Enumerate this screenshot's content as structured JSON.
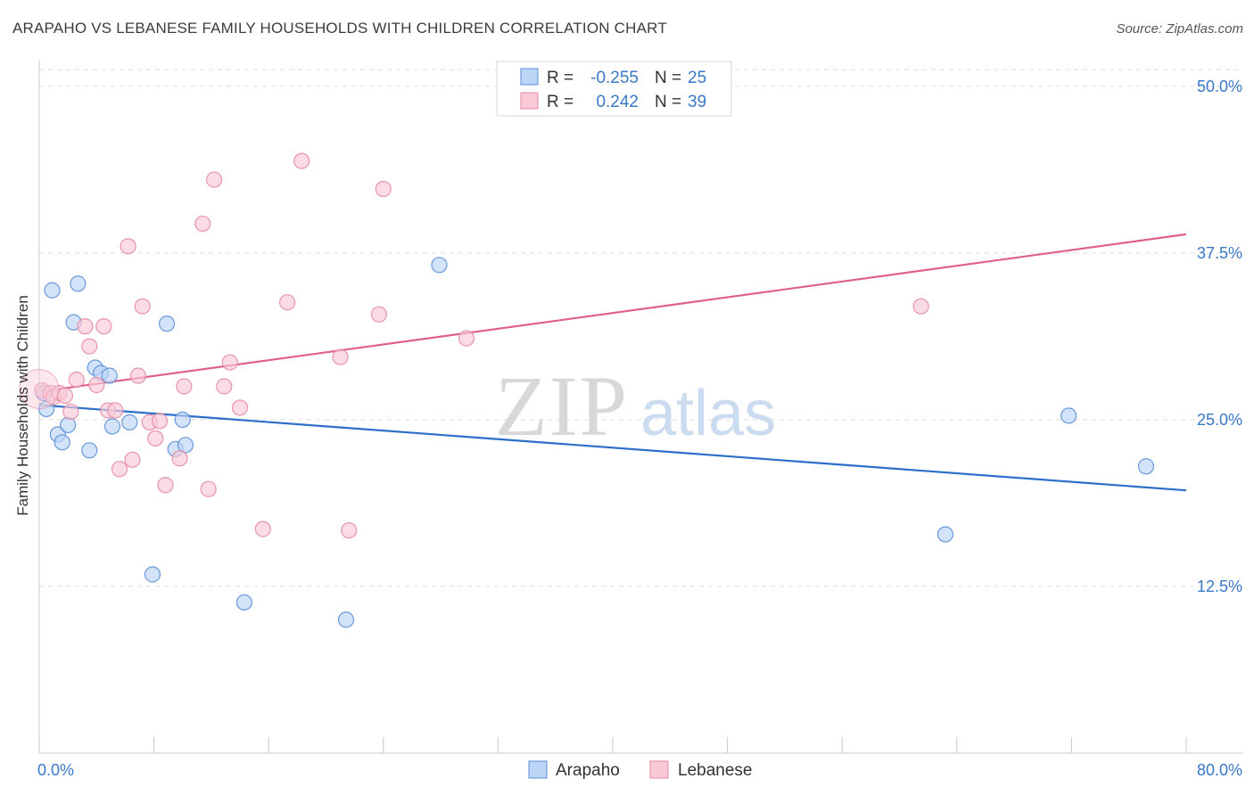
{
  "title": "ARAPAHO VS LEBANESE FAMILY HOUSEHOLDS WITH CHILDREN CORRELATION CHART",
  "source": "Source: ZipAtlas.com",
  "watermark": {
    "zip": "ZIP",
    "atlas": "atlas"
  },
  "legend_top": {
    "rows": [
      {
        "r_label": "R =",
        "r_value": "-0.255",
        "n_label": "N =",
        "n_value": "25"
      },
      {
        "r_label": "R =",
        "r_value": "0.242",
        "n_label": "N =",
        "n_value": "39"
      }
    ]
  },
  "colors": {
    "arapaho_fill": "#bcd4f6",
    "arapaho_stroke": "#5b8fd6",
    "arapaho_line": "#2b6fcb",
    "lebanese_fill": "#f9c9d6",
    "lebanese_stroke": "#e58aa6",
    "lebanese_line": "#e0608c",
    "axis_text": "#3a78c8",
    "grid": "#dddddd"
  },
  "chart_data": {
    "type": "scatter",
    "title": "ARAPAHO VS LEBANESE FAMILY HOUSEHOLDS WITH CHILDREN CORRELATION CHART",
    "xlabel": "",
    "ylabel": "Family Households with Children",
    "xlim": [
      0,
      80
    ],
    "ylim": [
      0,
      50
    ],
    "x_tick_labels": [
      "0.0%",
      "80.0%"
    ],
    "y_ticks": [
      12.5,
      25.0,
      37.5,
      50.0
    ],
    "y_tick_labels": [
      "12.5%",
      "25.0%",
      "37.5%",
      "50.0%"
    ],
    "grid": true,
    "legend": [
      "Arapaho",
      "Lebanese"
    ],
    "series": [
      {
        "name": "Arapaho",
        "trend": {
          "x": [
            0,
            80
          ],
          "y": [
            26.1,
            19.7
          ]
        },
        "points": [
          {
            "x": 0.3,
            "y": 27.0
          },
          {
            "x": 0.5,
            "y": 25.8
          },
          {
            "x": 0.9,
            "y": 34.7
          },
          {
            "x": 1.3,
            "y": 23.9
          },
          {
            "x": 1.6,
            "y": 23.3
          },
          {
            "x": 2.0,
            "y": 24.6
          },
          {
            "x": 2.4,
            "y": 32.3
          },
          {
            "x": 2.7,
            "y": 35.2
          },
          {
            "x": 3.5,
            "y": 22.7
          },
          {
            "x": 3.9,
            "y": 28.9
          },
          {
            "x": 4.3,
            "y": 28.5
          },
          {
            "x": 4.9,
            "y": 28.3
          },
          {
            "x": 5.1,
            "y": 24.5
          },
          {
            "x": 6.3,
            "y": 24.8
          },
          {
            "x": 7.9,
            "y": 13.4
          },
          {
            "x": 8.9,
            "y": 32.2
          },
          {
            "x": 9.5,
            "y": 22.8
          },
          {
            "x": 10.0,
            "y": 25.0
          },
          {
            "x": 10.2,
            "y": 23.1
          },
          {
            "x": 14.3,
            "y": 11.3
          },
          {
            "x": 21.4,
            "y": 10.0
          },
          {
            "x": 27.9,
            "y": 36.6
          },
          {
            "x": 63.2,
            "y": 16.4
          },
          {
            "x": 71.8,
            "y": 25.3
          },
          {
            "x": 77.2,
            "y": 21.5
          }
        ]
      },
      {
        "name": "Lebanese",
        "trend": {
          "x": [
            0,
            80
          ],
          "y": [
            27.1,
            38.9
          ]
        },
        "points": [
          {
            "x": 0.2,
            "y": 27.2
          },
          {
            "x": 0.8,
            "y": 27.0
          },
          {
            "x": 1.0,
            "y": 26.7
          },
          {
            "x": 1.4,
            "y": 27.0
          },
          {
            "x": 1.8,
            "y": 26.8
          },
          {
            "x": 2.2,
            "y": 25.6
          },
          {
            "x": 2.6,
            "y": 28.0
          },
          {
            "x": 3.2,
            "y": 32.0
          },
          {
            "x": 3.5,
            "y": 30.5
          },
          {
            "x": 4.0,
            "y": 27.6
          },
          {
            "x": 4.5,
            "y": 32.0
          },
          {
            "x": 4.8,
            "y": 25.7
          },
          {
            "x": 5.3,
            "y": 25.7
          },
          {
            "x": 5.6,
            "y": 21.3
          },
          {
            "x": 6.2,
            "y": 38.0
          },
          {
            "x": 6.5,
            "y": 22.0
          },
          {
            "x": 6.9,
            "y": 28.3
          },
          {
            "x": 7.2,
            "y": 33.5
          },
          {
            "x": 7.7,
            "y": 24.8
          },
          {
            "x": 8.1,
            "y": 23.6
          },
          {
            "x": 8.4,
            "y": 24.9
          },
          {
            "x": 8.8,
            "y": 20.1
          },
          {
            "x": 9.8,
            "y": 22.1
          },
          {
            "x": 10.1,
            "y": 27.5
          },
          {
            "x": 11.4,
            "y": 39.7
          },
          {
            "x": 11.8,
            "y": 19.8
          },
          {
            "x": 12.2,
            "y": 43.0
          },
          {
            "x": 12.9,
            "y": 27.5
          },
          {
            "x": 13.3,
            "y": 29.3
          },
          {
            "x": 14.0,
            "y": 25.9
          },
          {
            "x": 15.6,
            "y": 16.8
          },
          {
            "x": 17.3,
            "y": 33.8
          },
          {
            "x": 18.3,
            "y": 44.4
          },
          {
            "x": 21.0,
            "y": 29.7
          },
          {
            "x": 21.6,
            "y": 16.7
          },
          {
            "x": 23.7,
            "y": 32.9
          },
          {
            "x": 24.0,
            "y": 42.3
          },
          {
            "x": 29.8,
            "y": 31.1
          },
          {
            "x": 61.5,
            "y": 33.5
          }
        ]
      }
    ]
  }
}
